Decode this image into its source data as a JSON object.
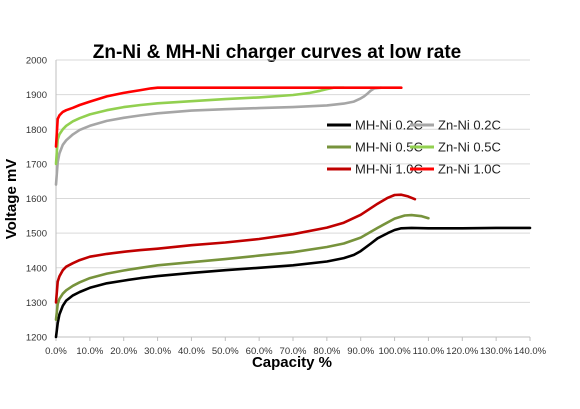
{
  "chart_data": {
    "type": "line",
    "title": "Zn-Ni & MH-Ni charger curves at low rate",
    "xlabel": "Capacity %",
    "ylabel": "Voltage mV",
    "xlim": [
      0,
      140
    ],
    "ylim": [
      1200,
      2000
    ],
    "x_ticks": [
      "0.0%",
      "10.0%",
      "20.0%",
      "30.0%",
      "40.0%",
      "50.0%",
      "60.0%",
      "70.0%",
      "80.0%",
      "90.0%",
      "100.0%",
      "110.0%",
      "120.0%",
      "130.0%",
      "140.0%"
    ],
    "y_ticks": [
      "1200",
      "1300",
      "1400",
      "1500",
      "1600",
      "1700",
      "1800",
      "1900",
      "2000"
    ],
    "grid": "horizontal",
    "legend": "right, inside plot, 2 columns",
    "series": [
      {
        "name": "MH-Ni 0.2C",
        "color": "#000000",
        "x": [
          0,
          0.5,
          1,
          2,
          3,
          5,
          7,
          10,
          15,
          20,
          25,
          30,
          40,
          50,
          60,
          70,
          80,
          85,
          88,
          90,
          93,
          95,
          98,
          100,
          102,
          105,
          110,
          120,
          130,
          140
        ],
        "y": [
          1200,
          1240,
          1265,
          1290,
          1305,
          1320,
          1330,
          1342,
          1355,
          1363,
          1370,
          1376,
          1385,
          1393,
          1400,
          1407,
          1418,
          1428,
          1437,
          1448,
          1470,
          1485,
          1500,
          1509,
          1514,
          1515,
          1514,
          1514,
          1515,
          1515
        ]
      },
      {
        "name": "Zn-Ni 0.2C",
        "color": "#a6a6a6",
        "x": [
          0,
          0.5,
          1,
          2,
          3,
          5,
          7,
          10,
          15,
          20,
          25,
          30,
          40,
          50,
          60,
          70,
          80,
          85,
          88,
          90,
          91,
          92,
          93,
          94,
          96
        ],
        "y": [
          1640,
          1705,
          1730,
          1755,
          1768,
          1785,
          1798,
          1810,
          1824,
          1833,
          1840,
          1846,
          1854,
          1858,
          1861,
          1864,
          1869,
          1874,
          1880,
          1889,
          1895,
          1903,
          1912,
          1918,
          1920
        ]
      },
      {
        "name": "MH-Ni 0.5C",
        "color": "#77933c",
        "x": [
          0,
          0.5,
          1,
          2,
          3,
          5,
          7,
          10,
          15,
          20,
          25,
          30,
          40,
          50,
          60,
          70,
          80,
          85,
          90,
          95,
          100,
          103,
          105,
          108,
          110
        ],
        "y": [
          1250,
          1295,
          1310,
          1325,
          1335,
          1348,
          1358,
          1370,
          1383,
          1392,
          1400,
          1407,
          1416,
          1425,
          1435,
          1445,
          1460,
          1470,
          1487,
          1515,
          1542,
          1551,
          1552,
          1549,
          1543
        ]
      },
      {
        "name": "Zn-Ni 0.5C",
        "color": "#92d050",
        "x": [
          0,
          0.5,
          1,
          2,
          3,
          5,
          7,
          10,
          15,
          20,
          25,
          30,
          40,
          50,
          60,
          70,
          75,
          78,
          80,
          82,
          85
        ],
        "y": [
          1700,
          1770,
          1785,
          1800,
          1810,
          1823,
          1832,
          1843,
          1855,
          1864,
          1870,
          1875,
          1881,
          1887,
          1892,
          1899,
          1905,
          1911,
          1916,
          1920,
          1920
        ]
      },
      {
        "name": "MH-Ni 1.0C",
        "color": "#c00000",
        "x": [
          0,
          0.5,
          1,
          2,
          3,
          5,
          7,
          10,
          15,
          20,
          25,
          30,
          40,
          50,
          60,
          70,
          80,
          85,
          90,
          95,
          98,
          100,
          102,
          104,
          106
        ],
        "y": [
          1300,
          1360,
          1375,
          1393,
          1403,
          1413,
          1422,
          1432,
          1440,
          1446,
          1451,
          1455,
          1465,
          1473,
          1483,
          1497,
          1516,
          1530,
          1553,
          1585,
          1602,
          1610,
          1611,
          1606,
          1598
        ]
      },
      {
        "name": "Zn-Ni 1.0C",
        "color": "#ff0000",
        "x": [
          0,
          0.5,
          1,
          2,
          3,
          5,
          7,
          10,
          15,
          20,
          25,
          28,
          30,
          40,
          50,
          60,
          70,
          80,
          90,
          100,
          102
        ],
        "y": [
          1750,
          1830,
          1840,
          1850,
          1855,
          1862,
          1870,
          1880,
          1895,
          1905,
          1913,
          1918,
          1920,
          1920,
          1920,
          1920,
          1920,
          1920,
          1920,
          1920,
          1920
        ]
      }
    ]
  }
}
